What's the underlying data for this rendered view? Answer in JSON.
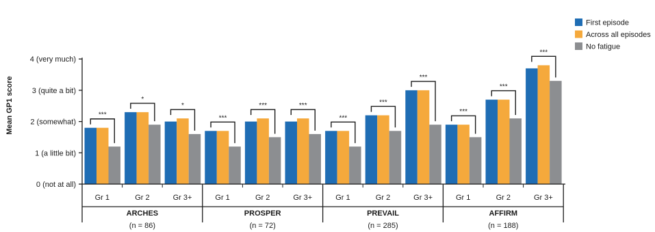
{
  "chart_data": {
    "type": "bar",
    "ylabel": "Mean GP1 score",
    "ylim": [
      0,
      4
    ],
    "yticks": [
      {
        "value": 0,
        "label": "0 (not at all)"
      },
      {
        "value": 1,
        "label": "1 (a little bit)"
      },
      {
        "value": 2,
        "label": "2 (somewhat)"
      },
      {
        "value": 3,
        "label": "3 (quite a bit)"
      },
      {
        "value": 4,
        "label": "4 (very much)"
      }
    ],
    "grid": false,
    "legend_position": "top-right",
    "series": [
      {
        "name": "First episode",
        "color": "#1f6db4"
      },
      {
        "name": "Across all episodes",
        "color": "#f5a93c"
      },
      {
        "name": "No fatigue",
        "color": "#8c8e91"
      }
    ],
    "studies": [
      {
        "name": "ARCHES",
        "n": "(n = 86)",
        "grades": [
          {
            "label": "Gr 1",
            "values": [
              1.8,
              1.8,
              1.2
            ],
            "sig": "***"
          },
          {
            "label": "Gr 2",
            "values": [
              2.3,
              2.3,
              1.9
            ],
            "sig": "*"
          },
          {
            "label": "Gr 3+",
            "values": [
              2.0,
              2.1,
              1.6
            ],
            "sig": "*"
          }
        ]
      },
      {
        "name": "PROSPER",
        "n": "(n = 72)",
        "grades": [
          {
            "label": "Gr 1",
            "values": [
              1.7,
              1.7,
              1.2
            ],
            "sig": "***"
          },
          {
            "label": "Gr 2",
            "values": [
              2.0,
              2.1,
              1.5
            ],
            "sig": "***"
          },
          {
            "label": "Gr 3+",
            "values": [
              2.0,
              2.1,
              1.6
            ],
            "sig": "***"
          }
        ]
      },
      {
        "name": "PREVAIL",
        "n": "(n = 285)",
        "grades": [
          {
            "label": "Gr 1",
            "values": [
              1.7,
              1.7,
              1.2
            ],
            "sig": "***"
          },
          {
            "label": "Gr 2",
            "values": [
              2.2,
              2.2,
              1.7
            ],
            "sig": "***"
          },
          {
            "label": "Gr 3+",
            "values": [
              3.0,
              3.0,
              1.9
            ],
            "sig": "***"
          }
        ]
      },
      {
        "name": "AFFIRM",
        "n": "(n = 188)",
        "grades": [
          {
            "label": "Gr 1",
            "values": [
              1.9,
              1.9,
              1.5
            ],
            "sig": "***"
          },
          {
            "label": "Gr 2",
            "values": [
              2.7,
              2.7,
              2.1
            ],
            "sig": "***"
          },
          {
            "label": "Gr 3+",
            "values": [
              3.7,
              3.8,
              3.3
            ],
            "sig": "***"
          }
        ]
      }
    ]
  }
}
